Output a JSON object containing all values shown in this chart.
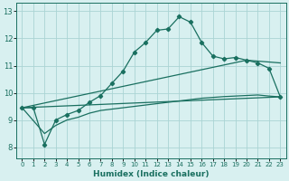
{
  "bg_color": "#d8f0f0",
  "grid_color": "#aad4d4",
  "line_color": "#1a7060",
  "xlabel": "Humidex (Indice chaleur)",
  "xlim": [
    -0.5,
    23.5
  ],
  "ylim": [
    7.6,
    13.3
  ],
  "xticks": [
    0,
    1,
    2,
    3,
    4,
    5,
    6,
    7,
    8,
    9,
    10,
    11,
    12,
    13,
    14,
    15,
    16,
    17,
    18,
    19,
    20,
    21,
    22,
    23
  ],
  "yticks": [
    8,
    9,
    10,
    11,
    12,
    13
  ],
  "line_main_x": [
    0,
    1,
    2,
    3,
    4,
    5,
    6,
    7,
    8,
    9,
    10,
    11,
    12,
    13,
    14,
    15,
    16,
    17,
    18,
    19,
    20,
    21,
    22,
    23
  ],
  "line_main_y": [
    9.45,
    9.45,
    8.1,
    9.0,
    9.2,
    9.35,
    9.65,
    9.9,
    10.35,
    10.8,
    11.5,
    11.85,
    12.3,
    12.35,
    12.8,
    12.6,
    11.85,
    11.35,
    11.25,
    11.3,
    11.2,
    11.1,
    10.9,
    9.85
  ],
  "line2_x": [
    0,
    2,
    3,
    4,
    5,
    6,
    7,
    8,
    9,
    10,
    11,
    12,
    13,
    14,
    15,
    16,
    17,
    18,
    19,
    20,
    21,
    22,
    23
  ],
  "line2_y": [
    9.45,
    8.5,
    8.8,
    9.0,
    9.1,
    9.25,
    9.35,
    9.4,
    9.45,
    9.5,
    9.55,
    9.6,
    9.65,
    9.7,
    9.75,
    9.8,
    9.83,
    9.86,
    9.88,
    9.9,
    9.92,
    9.88,
    9.85
  ],
  "line3_x": [
    0,
    23
  ],
  "line3_y": [
    9.45,
    9.85
  ],
  "line4_x": [
    0,
    20,
    23
  ],
  "line4_y": [
    9.45,
    11.2,
    11.1
  ]
}
